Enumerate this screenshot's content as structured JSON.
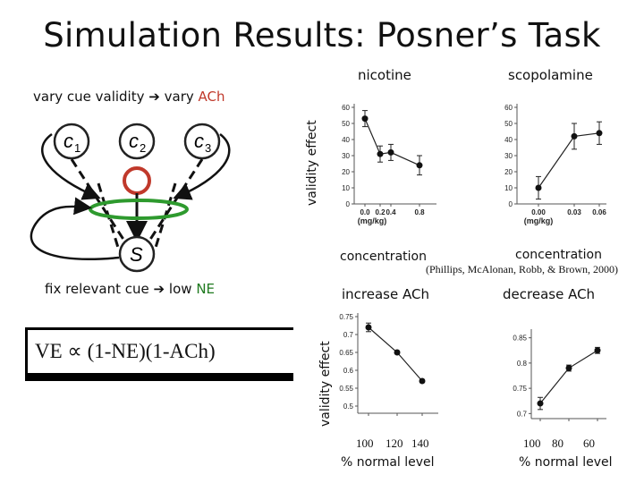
{
  "title": "Simulation Results: Posner’s Task",
  "left_panel": {
    "line1_prefix": "vary cue validity",
    "line1_arrow": "➔",
    "line1_mid": "vary",
    "line1_accent": "ACh",
    "line2_prefix": "fix relevant cue",
    "line2_arrow": "➔",
    "line2_mid": "low",
    "line2_accent": "NE",
    "nodes": {
      "c1_base": "c",
      "c1_sub": "1",
      "c2_base": "c",
      "c2_sub": "2",
      "c3_base": "c",
      "c3_sub": "3",
      "s": "S"
    },
    "formula": "VE ∝ (1-NE)(1-ACh)",
    "colors": {
      "red": "#c0392b",
      "green": "#2e9a2e",
      "black": "#111111"
    }
  },
  "top_section": {
    "ylabel": "validity effect",
    "nicotine_title": "nicotine",
    "scopolamine_title": "scopolamine",
    "nicotine_xlabel": "concentration",
    "scopolamine_xlabel": "concentration",
    "citation": "(Phillips, McAlonan, Robb, & Brown, 2000)"
  },
  "bottom_section": {
    "ylabel": "validity effect",
    "left_title": "increase ACh",
    "right_title": "decrease ACh",
    "left_xlabel": "% normal level",
    "right_xlabel": "% normal level"
  },
  "chart_data": [
    {
      "type": "line",
      "title": "nicotine",
      "xlabel": "(mg/kg)",
      "categories": [
        "0.0",
        "0.2",
        "0.4",
        "0.8"
      ],
      "yticks": [
        "0",
        "10",
        "20",
        "30",
        "40",
        "50",
        "60"
      ],
      "ylim": [
        0,
        60
      ],
      "values": [
        53,
        31,
        32,
        24
      ],
      "err": [
        5,
        5,
        5,
        6
      ]
    },
    {
      "type": "line",
      "title": "scopolamine",
      "xlabel": "(mg/kg)",
      "categories": [
        "0.00",
        "0.03",
        "0.06"
      ],
      "yticks": [
        "0",
        "10",
        "20",
        "30",
        "40",
        "50",
        "60"
      ],
      "ylim": [
        0,
        60
      ],
      "values": [
        10,
        42,
        44
      ],
      "err": [
        7,
        8,
        7
      ]
    },
    {
      "type": "line",
      "title": "increase ACh",
      "xlabel": "% normal level",
      "categories": [
        "100",
        "120",
        "140"
      ],
      "yticks": [
        "0.5",
        "0.55",
        "0.6",
        "0.65",
        "0.7",
        "0.75"
      ],
      "ylim": [
        0.48,
        0.76
      ],
      "values": [
        0.72,
        0.65,
        0.57
      ],
      "err": [
        0.012,
        0.004,
        0.004
      ]
    },
    {
      "type": "line",
      "title": "decrease ACh",
      "xlabel": "% normal level",
      "categories": [
        "100",
        "80",
        "60"
      ],
      "yticks": [
        "0.7",
        "0.75",
        "0.8",
        "0.85"
      ],
      "ylim": [
        0.69,
        0.86
      ],
      "values": [
        0.72,
        0.79,
        0.825
      ],
      "err": [
        0.012,
        0.006,
        0.006
      ]
    }
  ]
}
